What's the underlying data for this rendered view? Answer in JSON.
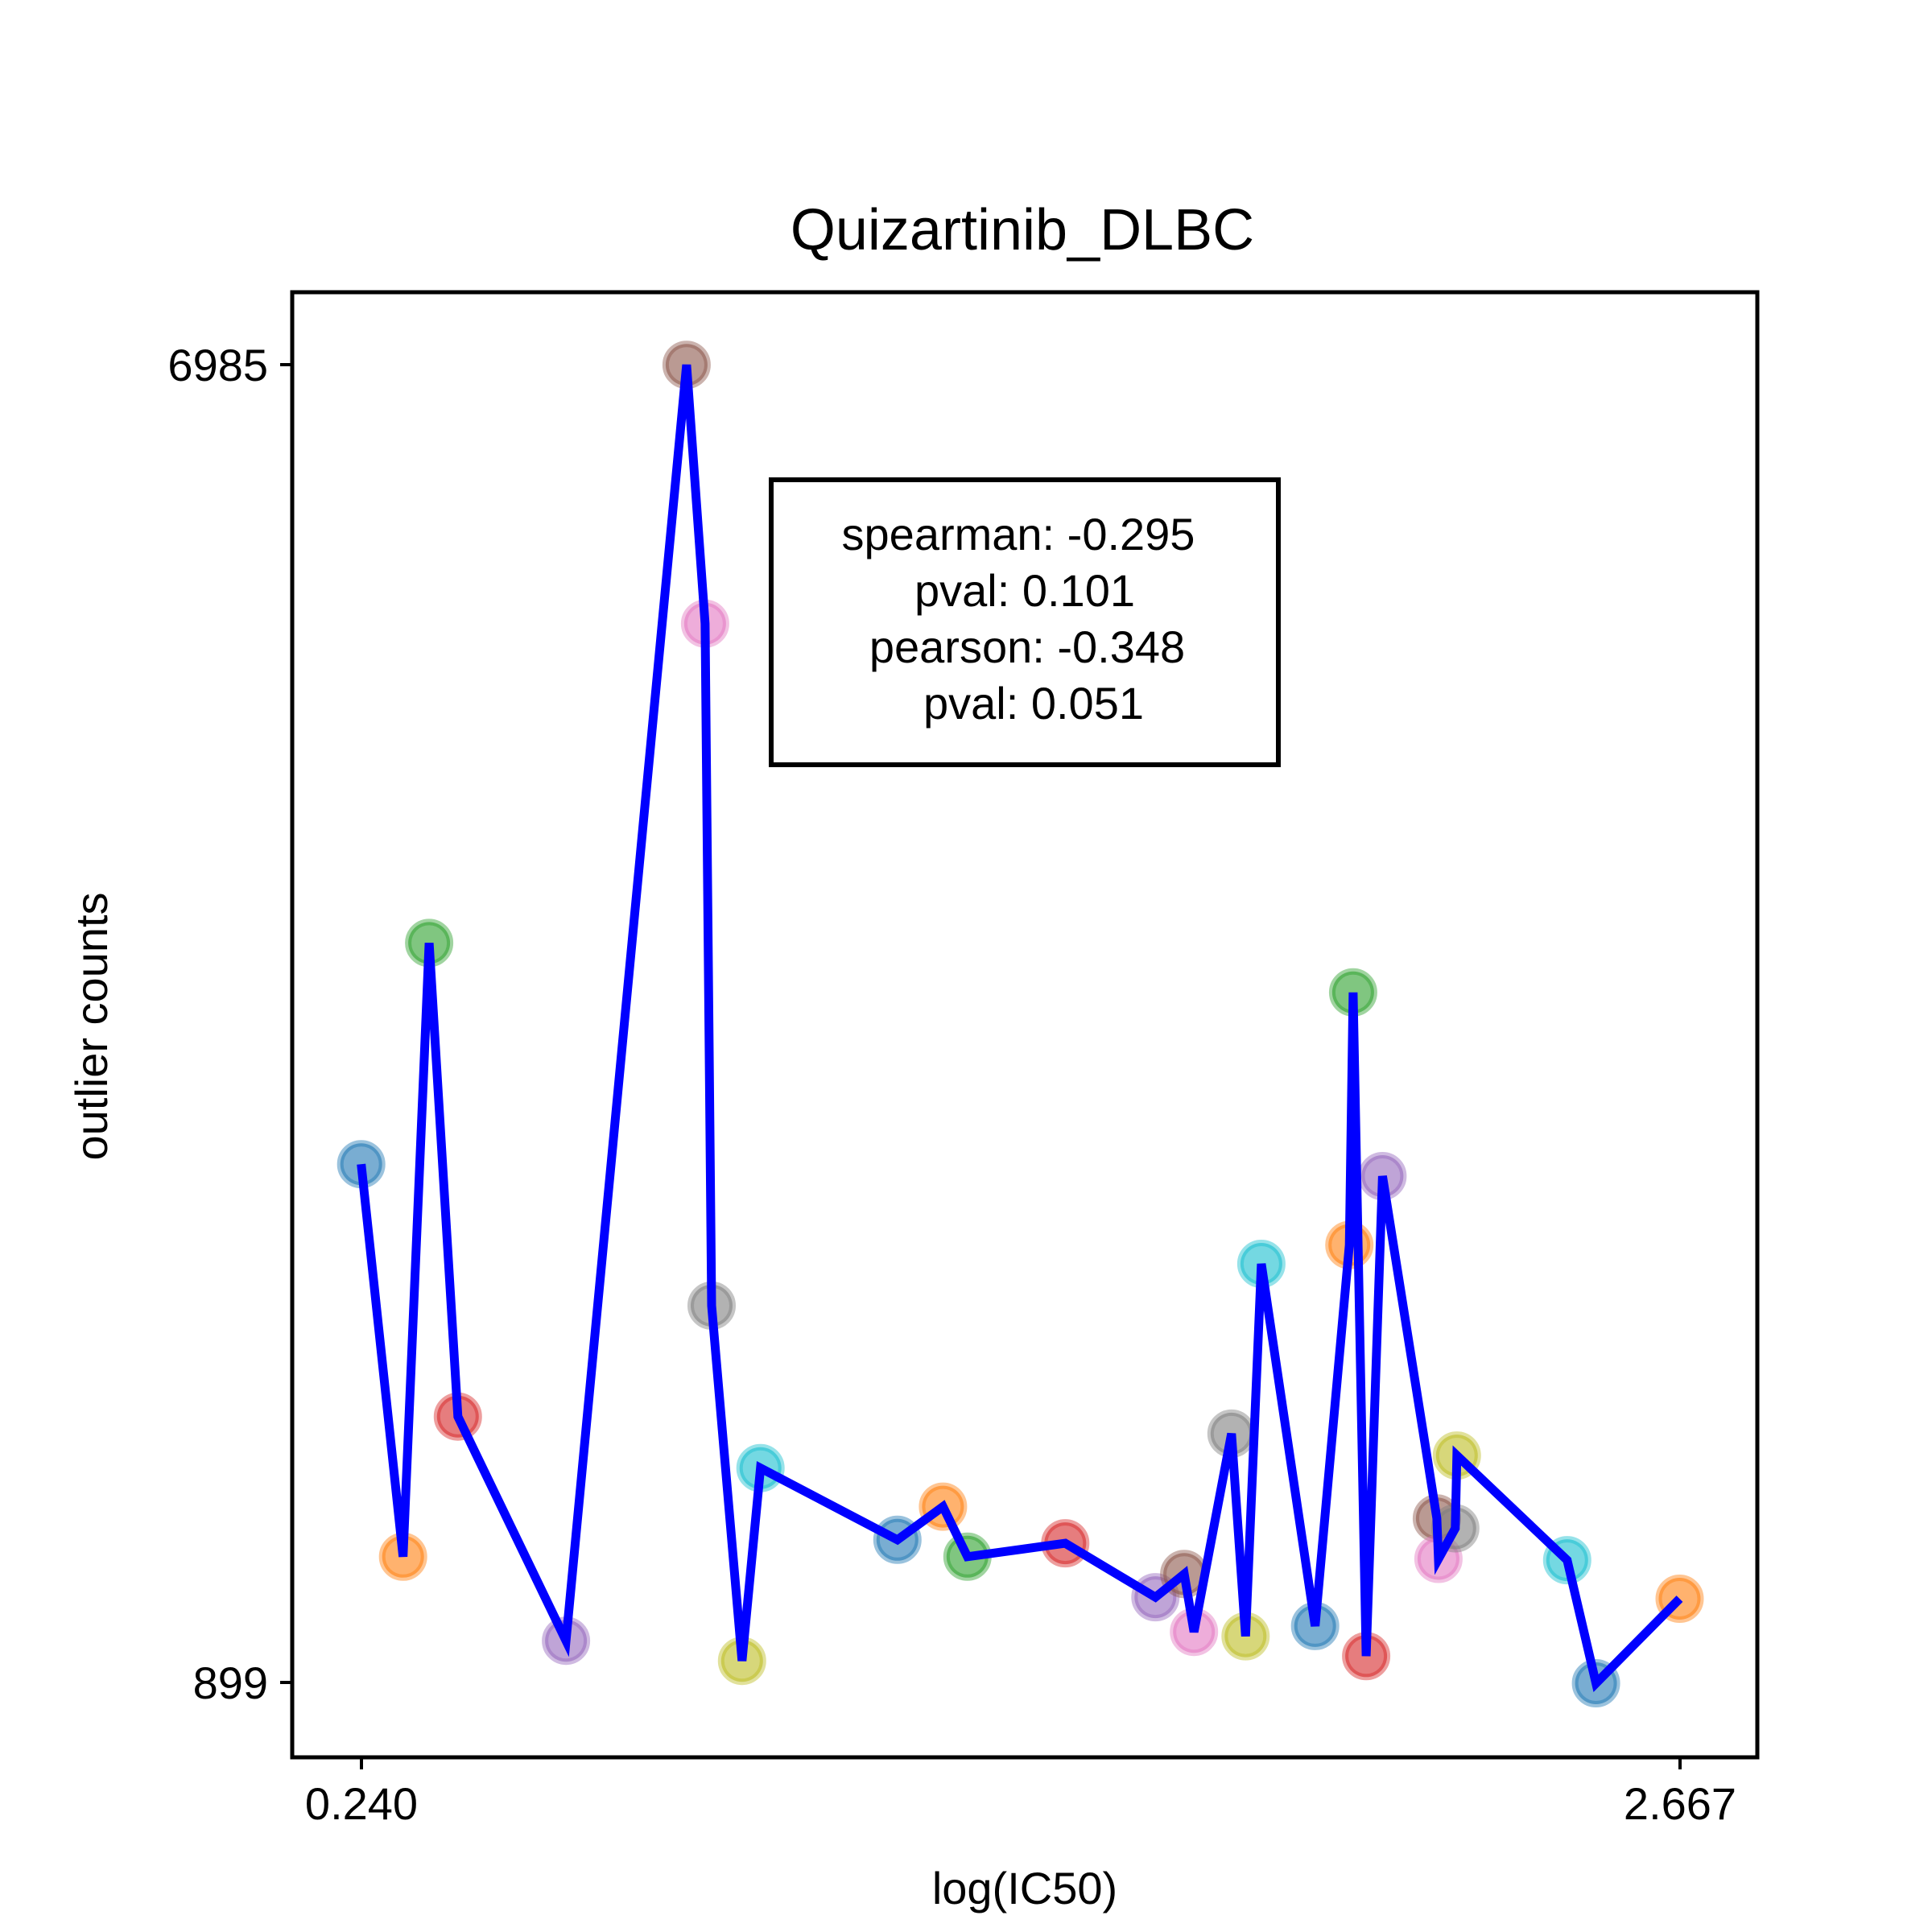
{
  "chart_data": {
    "type": "scatter",
    "title": "Quizartinib_DLBC",
    "xlabel": "log(IC50)",
    "ylabel": "outlier counts",
    "x_ticks": [
      "0.240",
      "2.667"
    ],
    "y_ticks": [
      "899",
      "6985"
    ],
    "xlim": [
      0.113,
      2.81
    ],
    "ylim": [
      557,
      7320
    ],
    "grid": false,
    "line_color": "#0000ff",
    "stats": {
      "line1": "spearman: -0.295",
      "line2": "pval: 0.101",
      "line3": "pearson: -0.348",
      "line4": "pval: 0.051"
    },
    "palette": [
      "#1f77b4",
      "#ff7f0e",
      "#2ca02c",
      "#d62728",
      "#9467bd",
      "#8c564b",
      "#e377c2",
      "#7f7f7f",
      "#bcbd22",
      "#17becf"
    ],
    "points": [
      {
        "x": 0.24,
        "y": 3295,
        "color": "#1f77b4"
      },
      {
        "x": 0.317,
        "y": 1483,
        "color": "#ff7f0e"
      },
      {
        "x": 0.365,
        "y": 4316,
        "color": "#2ca02c"
      },
      {
        "x": 0.418,
        "y": 2130,
        "color": "#d62728"
      },
      {
        "x": 0.617,
        "y": 1095,
        "color": "#9467bd"
      },
      {
        "x": 0.839,
        "y": 6985,
        "color": "#8c564b"
      },
      {
        "x": 0.873,
        "y": 5790,
        "color": "#e377c2"
      },
      {
        "x": 0.885,
        "y": 2642,
        "color": "#7f7f7f"
      },
      {
        "x": 0.941,
        "y": 1002,
        "color": "#bcbd22"
      },
      {
        "x": 0.975,
        "y": 1892,
        "color": "#17becf"
      },
      {
        "x": 1.227,
        "y": 1561,
        "color": "#1f77b4"
      },
      {
        "x": 1.311,
        "y": 1714,
        "color": "#ff7f0e"
      },
      {
        "x": 1.356,
        "y": 1483,
        "color": "#2ca02c"
      },
      {
        "x": 1.536,
        "y": 1545,
        "color": "#d62728"
      },
      {
        "x": 1.702,
        "y": 1296,
        "color": "#9467bd"
      },
      {
        "x": 1.755,
        "y": 1403,
        "color": "#8c564b"
      },
      {
        "x": 1.773,
        "y": 1136,
        "color": "#e377c2"
      },
      {
        "x": 1.842,
        "y": 2051,
        "color": "#7f7f7f"
      },
      {
        "x": 1.868,
        "y": 1116,
        "color": "#bcbd22"
      },
      {
        "x": 1.897,
        "y": 2835,
        "color": "#17becf"
      },
      {
        "x": 1.996,
        "y": 1163,
        "color": "#1f77b4"
      },
      {
        "x": 2.059,
        "y": 2922,
        "color": "#ff7f0e"
      },
      {
        "x": 2.066,
        "y": 4088,
        "color": "#2ca02c"
      },
      {
        "x": 2.09,
        "y": 1024,
        "color": "#d62728"
      },
      {
        "x": 2.12,
        "y": 3240,
        "color": "#9467bd"
      },
      {
        "x": 2.22,
        "y": 1660,
        "color": "#8c564b"
      },
      {
        "x": 2.223,
        "y": 1473,
        "color": "#e377c2"
      },
      {
        "x": 2.254,
        "y": 1614,
        "color": "#7f7f7f"
      },
      {
        "x": 2.257,
        "y": 1950,
        "color": "#bcbd22"
      },
      {
        "x": 2.46,
        "y": 1467,
        "color": "#17becf"
      },
      {
        "x": 2.513,
        "y": 899,
        "color": "#1f77b4"
      },
      {
        "x": 2.667,
        "y": 1289,
        "color": "#ff7f0e"
      }
    ],
    "line": [
      [
        0.24,
        3295
      ],
      [
        0.317,
        1483
      ],
      [
        0.365,
        4316
      ],
      [
        0.418,
        2130
      ],
      [
        0.617,
        1095
      ],
      [
        0.839,
        6985
      ],
      [
        0.873,
        5790
      ],
      [
        0.885,
        2642
      ],
      [
        0.941,
        1002
      ],
      [
        0.975,
        1892
      ],
      [
        1.227,
        1561
      ],
      [
        1.311,
        1714
      ],
      [
        1.356,
        1483
      ],
      [
        1.536,
        1545
      ],
      [
        1.702,
        1296
      ],
      [
        1.755,
        1403
      ],
      [
        1.773,
        1136
      ],
      [
        1.842,
        2051
      ],
      [
        1.868,
        1116
      ],
      [
        1.897,
        2835
      ],
      [
        1.996,
        1163
      ],
      [
        2.059,
        2922
      ],
      [
        2.066,
        4088
      ],
      [
        2.09,
        1024
      ],
      [
        2.12,
        3240
      ],
      [
        2.22,
        1660
      ],
      [
        2.223,
        1473
      ],
      [
        2.254,
        1614
      ],
      [
        2.257,
        1950
      ],
      [
        2.46,
        1467
      ],
      [
        2.513,
        899
      ],
      [
        2.667,
        1289
      ]
    ]
  }
}
